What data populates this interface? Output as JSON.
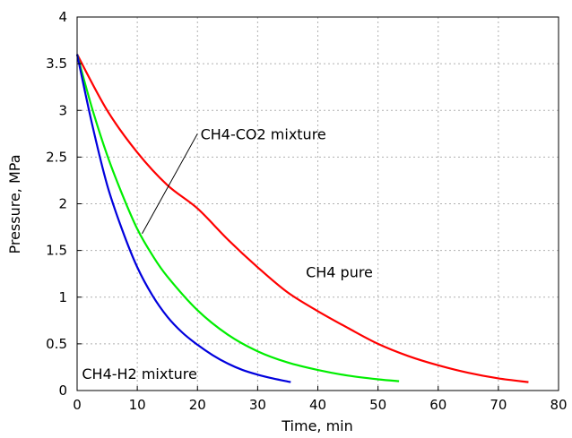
{
  "chart_data": {
    "type": "line",
    "title": "",
    "xlabel": "Time, min",
    "ylabel": "Pressure, MPa",
    "xlim": [
      0,
      80
    ],
    "ylim": [
      0,
      4
    ],
    "x_ticks": [
      "0",
      "10",
      "20",
      "30",
      "40",
      "50",
      "60",
      "70",
      "80"
    ],
    "y_ticks": [
      "0",
      "0.5",
      "1",
      "1.5",
      "2",
      "2.5",
      "3",
      "3.5",
      "4"
    ],
    "grid": true,
    "series": [
      {
        "name": "CH4 pure",
        "color": "#ff0000",
        "x": [
          0,
          5,
          10,
          15,
          20,
          25,
          30,
          35,
          40,
          45,
          50,
          55,
          60,
          65,
          70,
          75
        ],
        "y": [
          3.6,
          3.0,
          2.55,
          2.2,
          1.95,
          1.62,
          1.32,
          1.05,
          0.85,
          0.67,
          0.5,
          0.37,
          0.27,
          0.19,
          0.13,
          0.09
        ]
      },
      {
        "name": "CH4-CO2 mixture",
        "color": "#00ee00",
        "x": [
          0,
          2.5,
          5,
          7.5,
          10,
          12.5,
          15,
          20,
          25,
          30,
          35,
          40,
          45,
          50,
          53.5
        ],
        "y": [
          3.6,
          3.02,
          2.52,
          2.1,
          1.73,
          1.45,
          1.22,
          0.86,
          0.6,
          0.42,
          0.3,
          0.22,
          0.16,
          0.12,
          0.1
        ]
      },
      {
        "name": "CH4-H2 mixture",
        "color": "#0000dd",
        "x": [
          0,
          2.5,
          5,
          7.5,
          10,
          12.5,
          15,
          17.5,
          20,
          22.5,
          25,
          27.5,
          30,
          32.5,
          35.5
        ],
        "y": [
          3.6,
          2.85,
          2.2,
          1.72,
          1.32,
          1.02,
          0.79,
          0.62,
          0.49,
          0.38,
          0.29,
          0.22,
          0.17,
          0.13,
          0.09
        ]
      }
    ],
    "annotations": [
      {
        "text": "CH4-CO2 mixture",
        "x": 20.5,
        "y": 2.75,
        "leader": {
          "from": [
            20,
            2.75
          ],
          "to": [
            10.8,
            1.68
          ]
        }
      },
      {
        "text": "CH4 pure",
        "x": 38,
        "y": 1.27
      },
      {
        "text": "CH4-H2 mixture",
        "x": 0.8,
        "y": 0.18
      }
    ]
  }
}
